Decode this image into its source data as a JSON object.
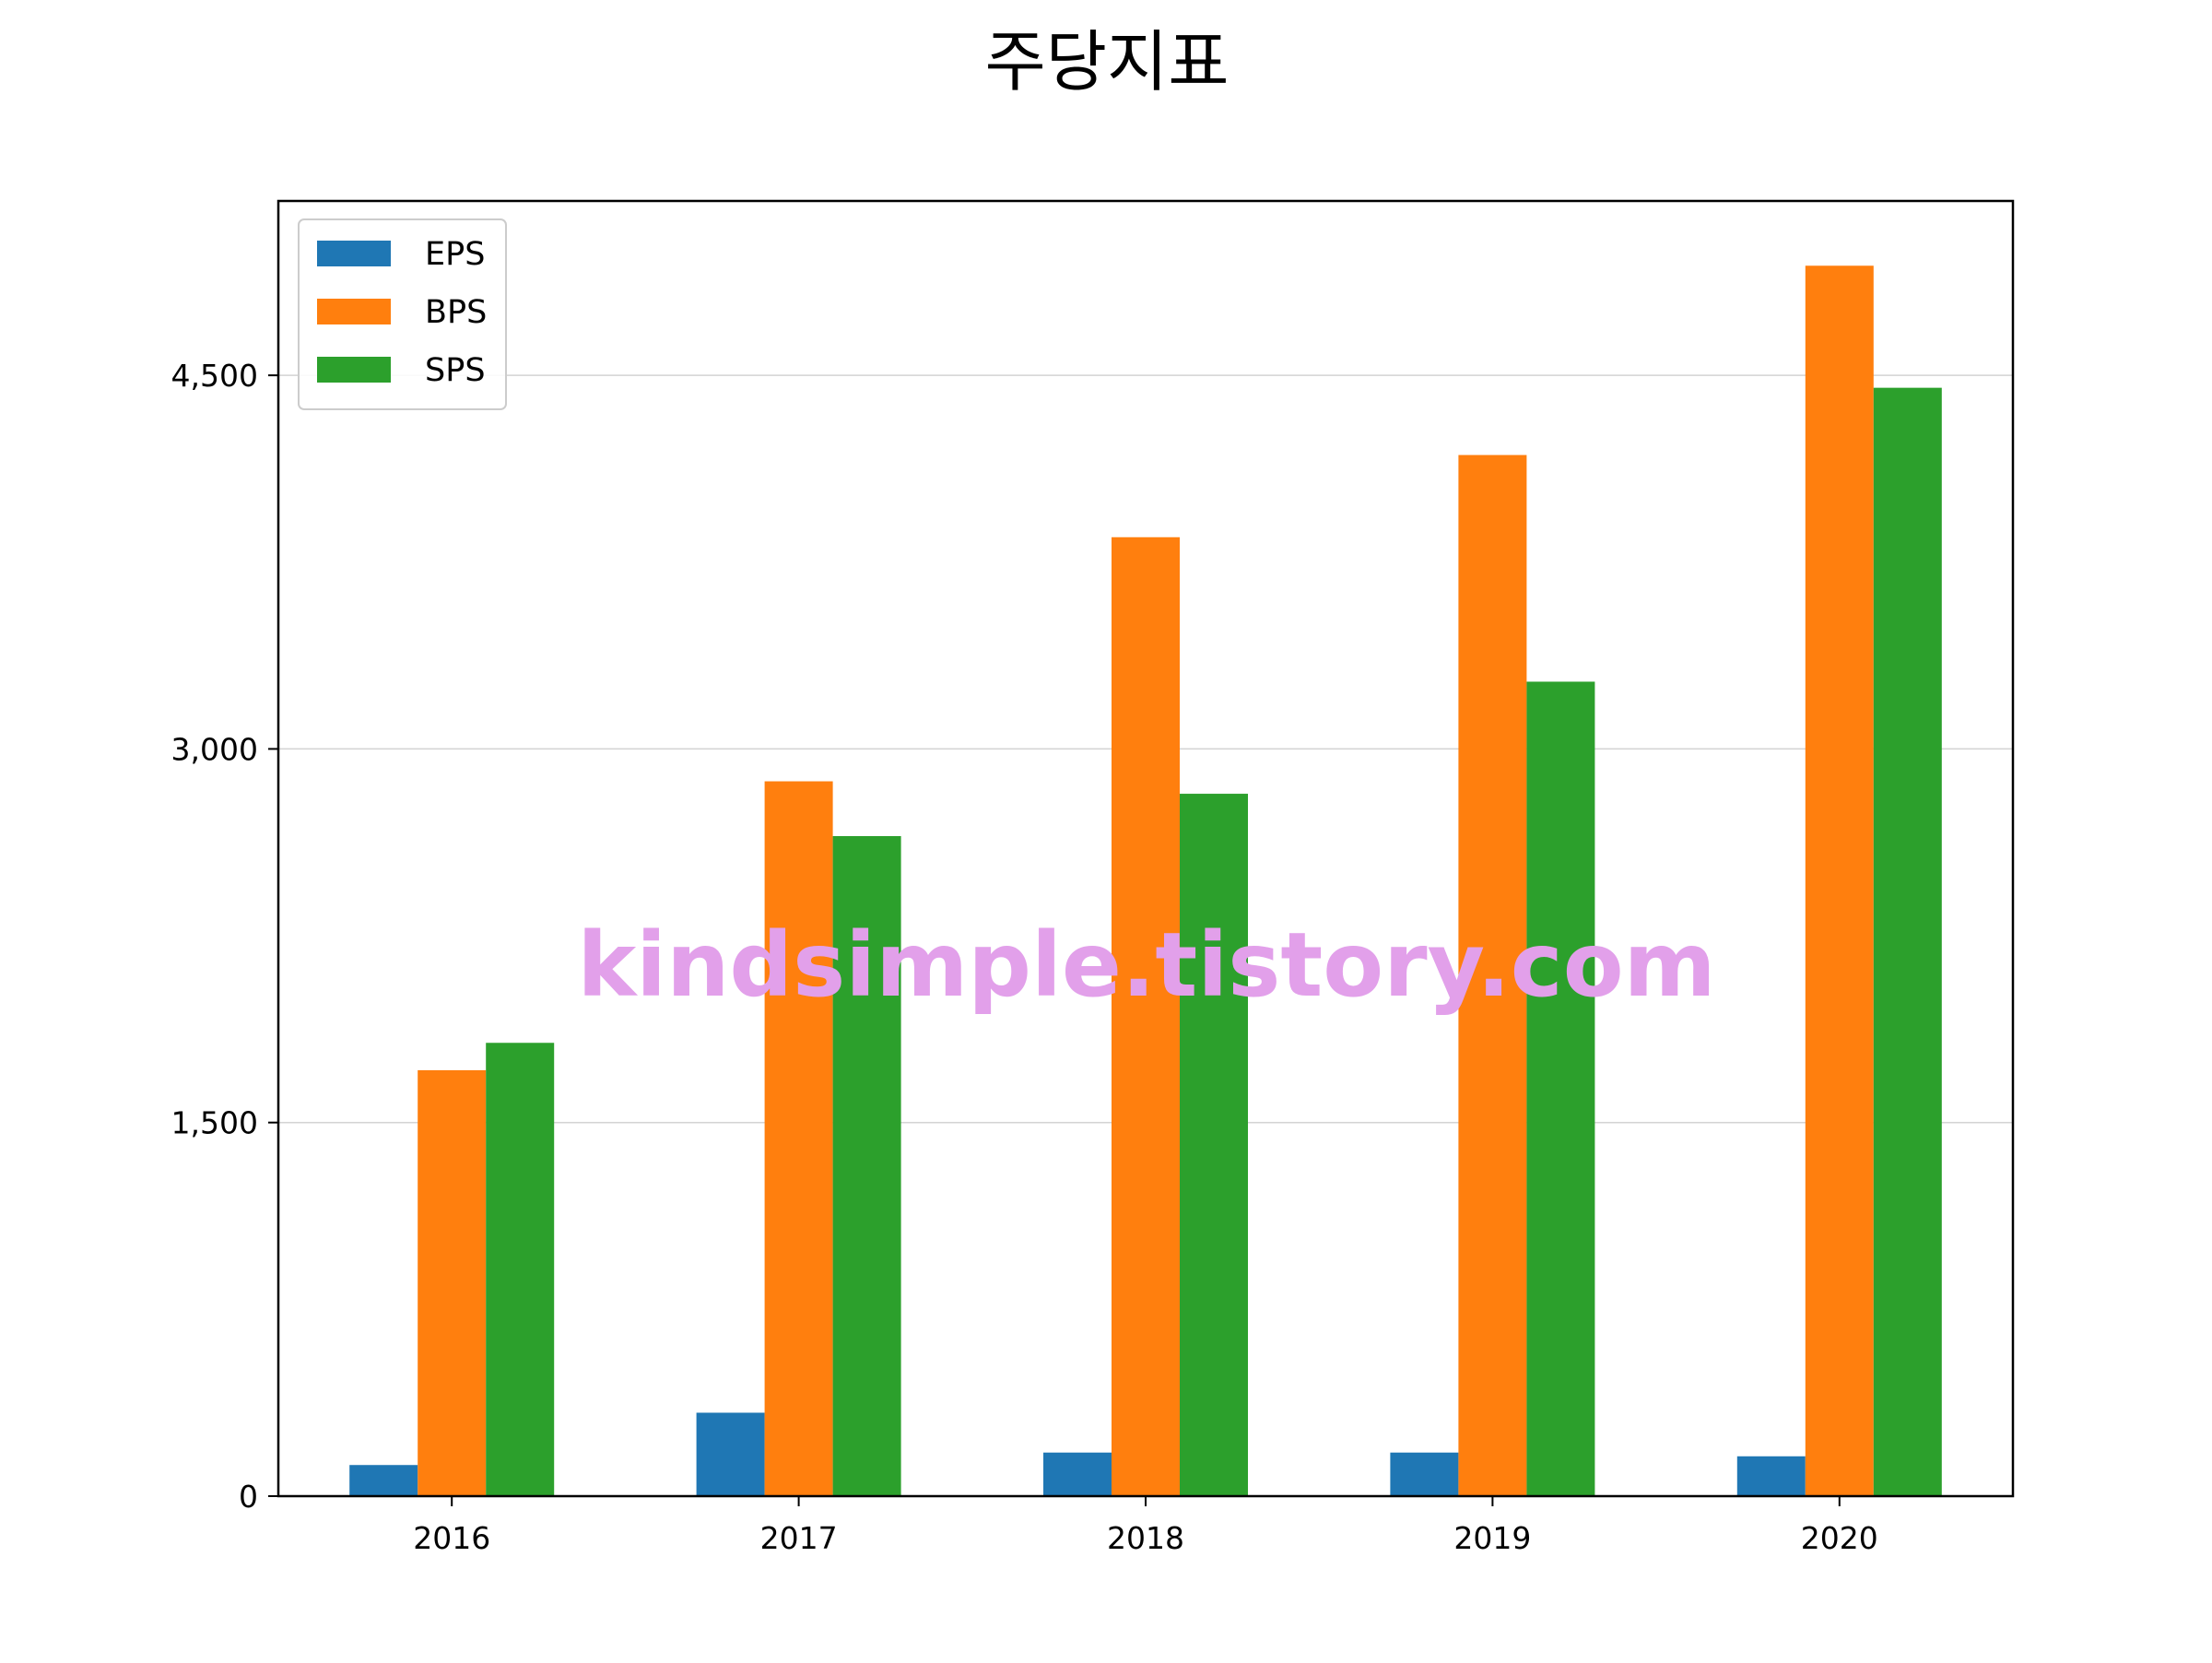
{
  "chart_data": {
    "type": "bar",
    "title": "주당지표",
    "xlabel": "",
    "ylabel": "",
    "categories": [
      "2016",
      "2017",
      "2018",
      "2019",
      "2020"
    ],
    "series": [
      {
        "name": "EPS",
        "color": "#1f77b4",
        "values": [
          125,
          335,
          175,
          175,
          160
        ]
      },
      {
        "name": "BPS",
        "color": "#ff7f0e",
        "values": [
          1710,
          2870,
          3850,
          4180,
          4940
        ]
      },
      {
        "name": "SPS",
        "color": "#2ca02c",
        "values": [
          1820,
          2650,
          2820,
          3270,
          4450
        ]
      }
    ],
    "ylim": [
      0,
      5200
    ],
    "yticks": [
      0,
      1500,
      3000,
      4500
    ],
    "ytick_labels": [
      "0",
      "1,500",
      "3,000",
      "4,500"
    ],
    "grid": "horizontal",
    "legend_position": "top-left",
    "watermark": "kindsimple.tistory.com"
  }
}
